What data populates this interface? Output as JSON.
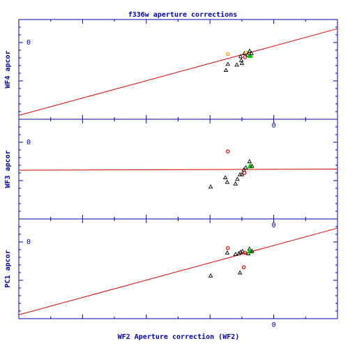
{
  "chart_data": {
    "type": "scatter",
    "title": "f336w aperture corrections",
    "xlabel": "WF2 Aperture correction (WF2)",
    "x_ticks": [
      "0"
    ],
    "xlim": [
      -0.4,
      0.1
    ],
    "colors": {
      "axes": "#0000aa",
      "fit": "#dd0000",
      "black": "#000000",
      "red": "#dd0000",
      "orange": "#ff8800",
      "green": "#00cc00",
      "yellow": "#ddcc00"
    },
    "panels": [
      {
        "ylabel": "WF4 apcor",
        "y_ticks": [
          "0"
        ],
        "ylim": [
          -0.1,
          0.03
        ],
        "fit_line": {
          "x": [
            -0.4,
            0.1
          ],
          "y": [
            -0.095,
            0.018
          ]
        },
        "points": [
          {
            "x": -0.072,
            "y": -0.015,
            "marker": "circle",
            "color": "orange"
          },
          {
            "x": -0.072,
            "y": -0.028,
            "marker": "triangle",
            "color": "black"
          },
          {
            "x": -0.075,
            "y": -0.036,
            "marker": "triangle",
            "color": "black"
          },
          {
            "x": -0.058,
            "y": -0.029,
            "marker": "triangle",
            "color": "black"
          },
          {
            "x": -0.052,
            "y": -0.018,
            "marker": "triangle",
            "color": "black"
          },
          {
            "x": -0.051,
            "y": -0.023,
            "marker": "triangle",
            "color": "black"
          },
          {
            "x": -0.05,
            "y": -0.027,
            "marker": "triangle",
            "color": "black"
          },
          {
            "x": -0.046,
            "y": -0.014,
            "marker": "triangle",
            "color": "black"
          },
          {
            "x": -0.045,
            "y": -0.019,
            "marker": "circle",
            "color": "red"
          },
          {
            "x": -0.043,
            "y": -0.013,
            "marker": "circle",
            "color": "yellow"
          },
          {
            "x": -0.041,
            "y": -0.016,
            "marker": "triangle",
            "color": "black"
          },
          {
            "x": -0.038,
            "y": -0.011,
            "marker": "triangle",
            "color": "black"
          },
          {
            "x": -0.037,
            "y": -0.017,
            "marker": "triangle",
            "color": "green"
          },
          {
            "x": -0.035,
            "y": -0.014,
            "marker": "triangle",
            "color": "black"
          }
        ]
      },
      {
        "ylabel": "WF3 apcor",
        "y_ticks": [
          "0"
        ],
        "ylim": [
          -0.1,
          0.03
        ],
        "fit_line": {
          "x": [
            -0.4,
            0.1
          ],
          "y": [
            -0.0365,
            -0.035
          ]
        },
        "points": [
          {
            "x": -0.072,
            "y": -0.012,
            "marker": "circle",
            "color": "red"
          },
          {
            "x": -0.099,
            "y": -0.058,
            "marker": "triangle",
            "color": "black"
          },
          {
            "x": -0.076,
            "y": -0.046,
            "marker": "triangle",
            "color": "black"
          },
          {
            "x": -0.073,
            "y": -0.052,
            "marker": "triangle",
            "color": "black"
          },
          {
            "x": -0.06,
            "y": -0.054,
            "marker": "triangle",
            "color": "black"
          },
          {
            "x": -0.057,
            "y": -0.048,
            "marker": "triangle",
            "color": "black"
          },
          {
            "x": -0.053,
            "y": -0.042,
            "marker": "triangle",
            "color": "black"
          },
          {
            "x": -0.05,
            "y": -0.042,
            "marker": "triangle",
            "color": "black"
          },
          {
            "x": -0.047,
            "y": -0.036,
            "marker": "triangle",
            "color": "black"
          },
          {
            "x": -0.046,
            "y": -0.04,
            "marker": "circle",
            "color": "red"
          },
          {
            "x": -0.044,
            "y": -0.033,
            "marker": "triangle",
            "color": "black"
          },
          {
            "x": -0.038,
            "y": -0.025,
            "marker": "triangle",
            "color": "black"
          },
          {
            "x": -0.037,
            "y": -0.031,
            "marker": "triangle",
            "color": "green"
          },
          {
            "x": -0.034,
            "y": -0.031,
            "marker": "triangle",
            "color": "black"
          }
        ]
      },
      {
        "ylabel": "PC1 apcor",
        "y_ticks": [
          "0"
        ],
        "ylim": [
          -0.1,
          0.03
        ],
        "fit_line": {
          "x": [
            -0.4,
            0.1
          ],
          "y": [
            -0.095,
            0.018
          ]
        },
        "points": [
          {
            "x": -0.072,
            "y": -0.008,
            "marker": "circle",
            "color": "red"
          },
          {
            "x": -0.099,
            "y": -0.044,
            "marker": "triangle",
            "color": "black"
          },
          {
            "x": -0.073,
            "y": -0.014,
            "marker": "triangle",
            "color": "black"
          },
          {
            "x": -0.06,
            "y": -0.016,
            "marker": "triangle",
            "color": "black"
          },
          {
            "x": -0.055,
            "y": -0.015,
            "marker": "triangle",
            "color": "black"
          },
          {
            "x": -0.052,
            "y": -0.013,
            "marker": "triangle",
            "color": "black"
          },
          {
            "x": -0.049,
            "y": -0.012,
            "marker": "triangle",
            "color": "black"
          },
          {
            "x": -0.045,
            "y": -0.014,
            "marker": "circle",
            "color": "red"
          },
          {
            "x": -0.053,
            "y": -0.04,
            "marker": "triangle",
            "color": "black"
          },
          {
            "x": -0.047,
            "y": -0.033,
            "marker": "circle",
            "color": "red"
          },
          {
            "x": -0.04,
            "y": -0.015,
            "marker": "triangle",
            "color": "black"
          },
          {
            "x": -0.038,
            "y": -0.009,
            "marker": "triangle",
            "color": "black"
          },
          {
            "x": -0.037,
            "y": -0.012,
            "marker": "triangle",
            "color": "green"
          },
          {
            "x": -0.034,
            "y": -0.012,
            "marker": "triangle",
            "color": "black"
          }
        ]
      }
    ]
  }
}
